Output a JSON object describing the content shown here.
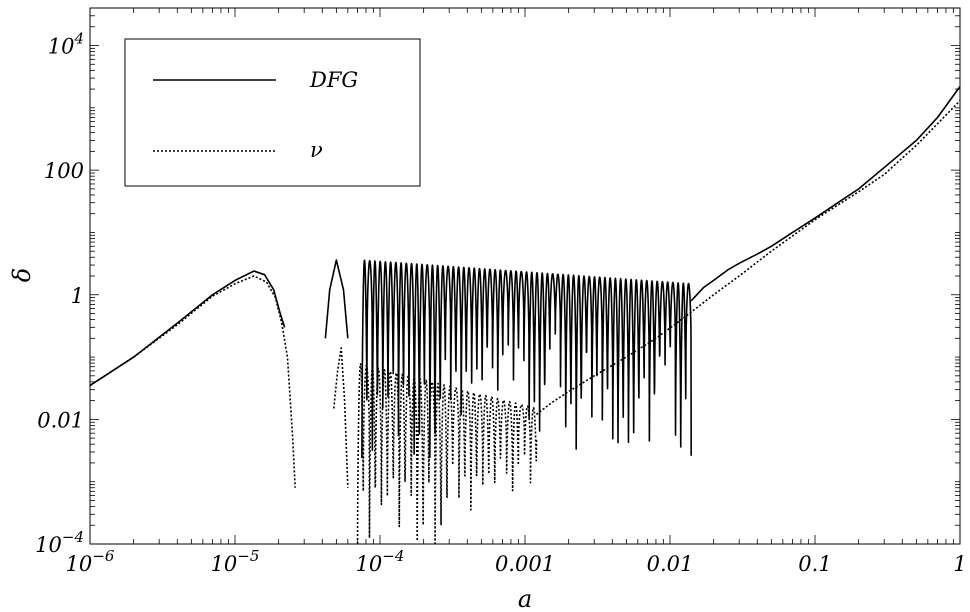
{
  "chart_data": {
    "type": "line",
    "title": "",
    "xlabel": "a",
    "ylabel": "δ",
    "x_scale": "log",
    "y_scale": "log",
    "xlim": [
      1e-06,
      1
    ],
    "ylim": [
      0.0001,
      40000
    ],
    "grid": false,
    "legend_position": "top-left",
    "x_ticks": [
      {
        "value": 1e-06,
        "base": "10",
        "exp": "−6"
      },
      {
        "value": 1e-05,
        "base": "10",
        "exp": "−5"
      },
      {
        "value": 0.0001,
        "base": "10",
        "exp": "−4"
      },
      {
        "value": 0.001,
        "base": "0.001",
        "exp": ""
      },
      {
        "value": 0.01,
        "base": "0.01",
        "exp": ""
      },
      {
        "value": 0.1,
        "base": "0.1",
        "exp": ""
      },
      {
        "value": 1,
        "base": "1",
        "exp": ""
      }
    ],
    "y_ticks": [
      {
        "value": 0.0001,
        "base": "10",
        "exp": "−4"
      },
      {
        "value": 0.01,
        "base": "0.01",
        "exp": ""
      },
      {
        "value": 1,
        "base": "1",
        "exp": ""
      },
      {
        "value": 100,
        "base": "100",
        "exp": ""
      },
      {
        "value": 10000,
        "base": "10",
        "exp": "4"
      }
    ],
    "series": [
      {
        "name": "DFG",
        "style": "solid",
        "color": "#000000",
        "segments": [
          {
            "x": [
              1e-06,
              2e-06,
              4e-06,
              7e-06,
              1e-05,
              1.35e-05,
              1.6e-05,
              1.85e-05,
              2.05e-05,
              2.2e-05
            ],
            "y": [
              0.035,
              0.1,
              0.35,
              1.0,
              1.7,
              2.4,
              2.1,
              1.2,
              0.5,
              0.3
            ]
          },
          {
            "x": [
              4.2e-05,
              4.5e-05,
              5e-05,
              5.6e-05,
              6e-05
            ],
            "y": [
              0.2,
              1.2,
              3.6,
              1.2,
              0.2
            ]
          }
        ],
        "oscillation": {
          "x_start": 7.5e-05,
          "x_end": 0.014,
          "count": 63,
          "peak_start": 3.6,
          "peak_end": 1.5,
          "trough_min": 0.0024,
          "trough_max": 0.35
        },
        "tail": {
          "x": [
            0.014,
            0.017,
            0.02,
            0.025,
            0.03,
            0.04,
            0.05,
            0.07,
            0.1,
            0.15,
            0.2,
            0.3,
            0.5,
            0.7,
            1.0
          ],
          "y": [
            0.8,
            1.3,
            1.7,
            2.5,
            3.2,
            4.5,
            6.0,
            10.0,
            17.0,
            32.0,
            50.0,
            110.0,
            300.0,
            700.0,
            2200.0
          ]
        }
      },
      {
        "name": "ν",
        "style": "dotted",
        "color": "#000000",
        "segments": [
          {
            "x": [
              1e-06,
              2e-06,
              4e-06,
              7e-06,
              1e-05,
              1.35e-05,
              1.65e-05,
              1.9e-05,
              2.1e-05,
              2.3e-05,
              2.5e-05,
              2.6e-05
            ],
            "y": [
              0.035,
              0.1,
              0.33,
              0.95,
              1.5,
              2.0,
              1.6,
              0.9,
              0.35,
              0.1,
              0.005,
              0.0008
            ]
          },
          {
            "x": [
              4.8e-05,
              5.1e-05,
              5.4e-05,
              5.7e-05,
              6e-05
            ],
            "y": [
              0.015,
              0.06,
              0.14,
              0.02,
              0.0008
            ]
          }
        ],
        "oscillation": {
          "x_start": 7e-05,
          "x_end": 0.0012,
          "count": 30,
          "peak_start": 0.08,
          "peak_end": 0.015,
          "trough_min": 0.0001,
          "trough_max": 0.005
        },
        "tail": {
          "x": [
            0.0012,
            0.0015,
            0.002,
            0.003,
            0.005,
            0.008,
            0.012,
            0.02,
            0.03,
            0.05,
            0.1,
            0.2,
            0.3,
            0.5,
            1.0
          ],
          "y": [
            0.012,
            0.018,
            0.028,
            0.05,
            0.1,
            0.2,
            0.4,
            1.0,
            2.0,
            5.0,
            16.0,
            45.0,
            85.0,
            250.0,
            1300.0
          ]
        }
      }
    ]
  }
}
